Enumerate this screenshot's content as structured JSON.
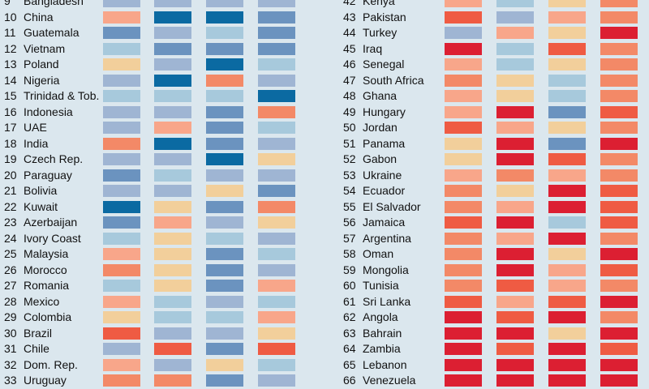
{
  "palette": {
    "1": "#0b6aa2",
    "2": "#6b93bf",
    "3": "#9fb5d3",
    "4": "#a7c9dc",
    "5": "#f2cf9b",
    "6": "#f8a68a",
    "7": "#f38967",
    "8": "#ef5b43",
    "9": "#dc1f32"
  },
  "chart_data": {
    "type": "heatmap",
    "title": "",
    "columns": 4,
    "left_rows": [
      {
        "rank": "9",
        "country": "Bangladesh",
        "values": [
          3,
          3,
          3,
          3
        ]
      },
      {
        "rank": "10",
        "country": "China",
        "values": [
          6,
          1,
          1,
          2
        ]
      },
      {
        "rank": "11",
        "country": "Guatemala",
        "values": [
          2,
          3,
          4,
          2
        ]
      },
      {
        "rank": "12",
        "country": "Vietnam",
        "values": [
          4,
          2,
          2,
          2
        ]
      },
      {
        "rank": "13",
        "country": "Poland",
        "values": [
          5,
          3,
          1,
          4
        ]
      },
      {
        "rank": "14",
        "country": "Nigeria",
        "values": [
          3,
          1,
          7,
          3
        ]
      },
      {
        "rank": "15",
        "country": "Trinidad & Tob.",
        "values": [
          4,
          4,
          4,
          1
        ]
      },
      {
        "rank": "16",
        "country": "Indonesia",
        "values": [
          3,
          3,
          2,
          7
        ]
      },
      {
        "rank": "17",
        "country": "UAE",
        "values": [
          3,
          6,
          2,
          4
        ]
      },
      {
        "rank": "18",
        "country": "India",
        "values": [
          7,
          1,
          2,
          3
        ]
      },
      {
        "rank": "19",
        "country": "Czech Rep.",
        "values": [
          3,
          3,
          1,
          5
        ]
      },
      {
        "rank": "20",
        "country": "Paraguay",
        "values": [
          2,
          4,
          3,
          3
        ]
      },
      {
        "rank": "21",
        "country": "Bolivia",
        "values": [
          3,
          3,
          5,
          2
        ]
      },
      {
        "rank": "22",
        "country": "Kuwait",
        "values": [
          1,
          5,
          2,
          7
        ]
      },
      {
        "rank": "23",
        "country": "Azerbaijan",
        "values": [
          2,
          6,
          3,
          5
        ]
      },
      {
        "rank": "24",
        "country": "Ivory Coast",
        "values": [
          4,
          5,
          4,
          3
        ]
      },
      {
        "rank": "25",
        "country": "Malaysia",
        "values": [
          6,
          5,
          2,
          4
        ]
      },
      {
        "rank": "26",
        "country": "Morocco",
        "values": [
          7,
          5,
          2,
          3
        ]
      },
      {
        "rank": "27",
        "country": "Romania",
        "values": [
          4,
          5,
          2,
          6
        ]
      },
      {
        "rank": "28",
        "country": "Mexico",
        "values": [
          6,
          4,
          3,
          4
        ]
      },
      {
        "rank": "29",
        "country": "Colombia",
        "values": [
          5,
          4,
          4,
          6
        ]
      },
      {
        "rank": "30",
        "country": "Brazil",
        "values": [
          8,
          3,
          3,
          5
        ]
      },
      {
        "rank": "31",
        "country": "Chile",
        "values": [
          3,
          8,
          2,
          8
        ]
      },
      {
        "rank": "32",
        "country": "Dom. Rep.",
        "values": [
          6,
          3,
          5,
          4
        ]
      },
      {
        "rank": "33",
        "country": "Uruguay",
        "values": [
          7,
          7,
          2,
          3
        ]
      }
    ],
    "right_rows": [
      {
        "rank": "42",
        "country": "Kenya",
        "values": [
          6,
          4,
          5,
          7
        ]
      },
      {
        "rank": "43",
        "country": "Pakistan",
        "values": [
          8,
          3,
          6,
          7
        ]
      },
      {
        "rank": "44",
        "country": "Turkey",
        "values": [
          3,
          6,
          5,
          9
        ]
      },
      {
        "rank": "45",
        "country": "Iraq",
        "values": [
          9,
          4,
          8,
          7
        ]
      },
      {
        "rank": "46",
        "country": "Senegal",
        "values": [
          6,
          4,
          5,
          7
        ]
      },
      {
        "rank": "47",
        "country": "South Africa",
        "values": [
          7,
          5,
          4,
          7
        ]
      },
      {
        "rank": "48",
        "country": "Ghana",
        "values": [
          6,
          5,
          4,
          7
        ]
      },
      {
        "rank": "49",
        "country": "Hungary",
        "values": [
          6,
          9,
          2,
          8
        ]
      },
      {
        "rank": "50",
        "country": "Jordan",
        "values": [
          8,
          6,
          5,
          7
        ]
      },
      {
        "rank": "51",
        "country": "Panama",
        "values": [
          5,
          9,
          2,
          9
        ]
      },
      {
        "rank": "52",
        "country": "Gabon",
        "values": [
          5,
          9,
          8,
          7
        ]
      },
      {
        "rank": "53",
        "country": "Ukraine",
        "values": [
          6,
          7,
          6,
          7
        ]
      },
      {
        "rank": "54",
        "country": "Ecuador",
        "values": [
          7,
          5,
          9,
          8
        ]
      },
      {
        "rank": "55",
        "country": "El Salvador",
        "values": [
          7,
          6,
          9,
          8
        ]
      },
      {
        "rank": "56",
        "country": "Jamaica",
        "values": [
          8,
          9,
          4,
          8
        ]
      },
      {
        "rank": "57",
        "country": "Argentina",
        "values": [
          7,
          6,
          9,
          7
        ]
      },
      {
        "rank": "58",
        "country": "Oman",
        "values": [
          7,
          9,
          5,
          9
        ]
      },
      {
        "rank": "59",
        "country": "Mongolia",
        "values": [
          7,
          9,
          6,
          8
        ]
      },
      {
        "rank": "60",
        "country": "Tunisia",
        "values": [
          7,
          8,
          6,
          7
        ]
      },
      {
        "rank": "61",
        "country": "Sri Lanka",
        "values": [
          8,
          6,
          8,
          9
        ]
      },
      {
        "rank": "62",
        "country": "Angola",
        "values": [
          9,
          8,
          9,
          7
        ]
      },
      {
        "rank": "63",
        "country": "Bahrain",
        "values": [
          9,
          9,
          5,
          9
        ]
      },
      {
        "rank": "64",
        "country": "Zambia",
        "values": [
          9,
          8,
          9,
          8
        ]
      },
      {
        "rank": "65",
        "country": "Lebanon",
        "values": [
          9,
          9,
          9,
          9
        ]
      },
      {
        "rank": "66",
        "country": "Venezuela",
        "values": [
          9,
          9,
          9,
          9
        ]
      }
    ]
  }
}
